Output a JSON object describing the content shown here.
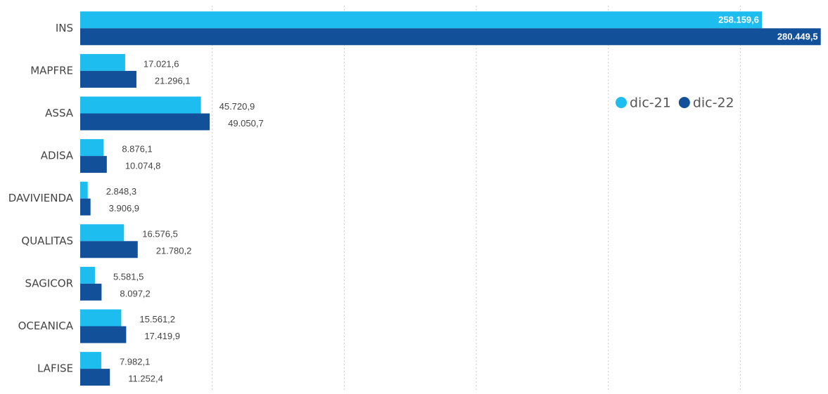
{
  "chart_data": {
    "type": "bar",
    "orientation": "horizontal",
    "categories": [
      "INS",
      "MAPFRE",
      "ASSA",
      "ADISA",
      "DAVIVIENDA",
      "QUALITAS",
      "SAGICOR",
      "OCEANICA",
      "LAFISE"
    ],
    "series": [
      {
        "name": "dic-21",
        "color": "#1dbdf0",
        "values": [
          258159.6,
          17021.6,
          45720.9,
          8876.1,
          2848.3,
          16576.5,
          5581.5,
          15561.2,
          7982.1
        ],
        "value_labels": [
          "258.159,6",
          "17.021,6",
          "45.720,9",
          "8.876,1",
          "2.848,3",
          "16.576,5",
          "5.581,5",
          "15.561,2",
          "7.982,1"
        ]
      },
      {
        "name": "dic-22",
        "color": "#12509a",
        "values": [
          280449.5,
          21296.1,
          49050.7,
          10074.8,
          3906.9,
          21780.2,
          8097.2,
          17419.9,
          11252.4
        ],
        "value_labels": [
          "280.449,5",
          "21.296,1",
          "49.050,7",
          "10.074,8",
          "3.906,9",
          "21.780,2",
          "8.097,2",
          "17.419,9",
          "11.252,4"
        ]
      }
    ],
    "xlim": [
      0,
      280000
    ],
    "xticks": [
      0,
      50000,
      100000,
      150000,
      200000,
      250000
    ],
    "grid": true,
    "legend": "upper-right"
  }
}
